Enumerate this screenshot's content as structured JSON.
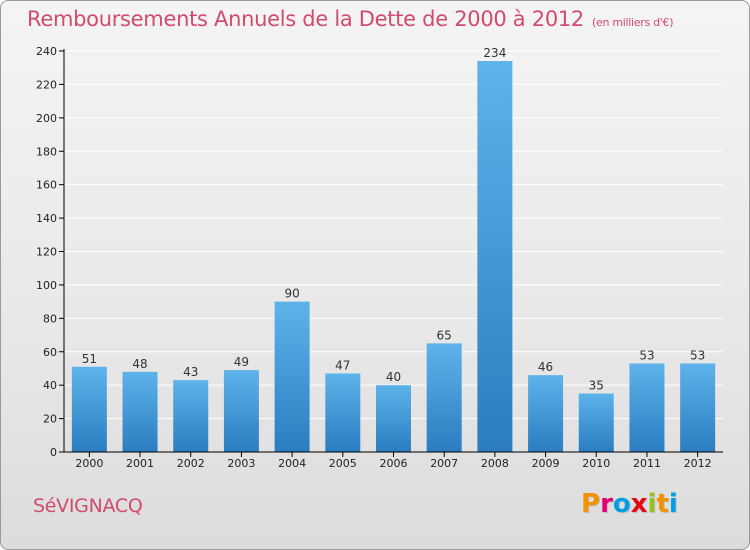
{
  "header": {
    "title": "Remboursements Annuels de la Dette de 2000 à 2012",
    "unit": "(en milliers d'€)"
  },
  "footer": {
    "commune": "SéVIGNACQ",
    "logo": "Proxiti"
  },
  "logo_colors": [
    "#f39200",
    "#e2007a",
    "#009fe3",
    "#e30613",
    "#95c11f",
    "#f39200",
    "#009fe3"
  ],
  "colors": {
    "title": "#d14b6e",
    "bar_top": "#5eb3ea",
    "bar_bottom": "#2a7dc0",
    "grid": "#ffffff",
    "axis": "#000000"
  },
  "chart_data": {
    "type": "bar",
    "categories": [
      "2000",
      "2001",
      "2002",
      "2003",
      "2004",
      "2005",
      "2006",
      "2007",
      "2008",
      "2009",
      "2010",
      "2011",
      "2012"
    ],
    "values": [
      51,
      48,
      43,
      49,
      90,
      47,
      40,
      65,
      234,
      46,
      35,
      53,
      53
    ],
    "data_labels": [
      "51",
      "48",
      "43",
      "49",
      "90",
      "47",
      "40",
      "65",
      "234",
      "46",
      "35",
      "53",
      "53"
    ],
    "y_ticks": [
      "0",
      "20",
      "40",
      "60",
      "80",
      "100",
      "120",
      "140",
      "160",
      "180",
      "200",
      "220",
      "240"
    ],
    "ylim": [
      0,
      240
    ],
    "grid": true
  }
}
